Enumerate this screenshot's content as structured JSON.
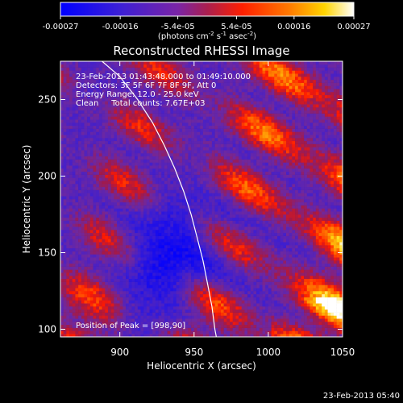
{
  "chart_data": {
    "type": "heatmap",
    "title": "Reconstructed RHESSI Image",
    "xlabel": "Heliocentric X (arcsec)",
    "ylabel": "Heliocentric Y (arcsec)",
    "xlim": [
      860,
      1050
    ],
    "ylim": [
      95,
      275
    ],
    "x_ticks": [
      900,
      950,
      1000,
      1050
    ],
    "y_ticks": [
      100,
      150,
      200,
      250
    ],
    "colorbar": {
      "ticks": [
        -0.00027,
        -0.00016,
        -5.4e-05,
        5.4e-05,
        0.00016,
        0.00027
      ],
      "tick_labels": [
        "-0.00027",
        "-0.00016",
        "-5.4e-05",
        "5.4e-05",
        "0.00016",
        "0.00027"
      ],
      "units_line1": "(photons cm",
      "units_exp1": "-2",
      "units_line2": " s",
      "units_exp2": "-1",
      "units_line3": " asec",
      "units_exp3": "-2",
      "units_line4": ")",
      "range": [
        -0.00027,
        0.00027
      ]
    },
    "annotations": {
      "time_range": "23-Feb-2013 01:43:48.000 to 01:49:10.000",
      "detectors": "Detectors: 3F 5F 6F 7F 8F 9F, Att 0",
      "energy": "Energy Range: 12.0 - 25.0 keV",
      "method": "Clean     Total counts: 7.67E+03",
      "peak": "Position of Peak = [998,90]"
    },
    "limb_curve_points": [
      [
        888,
        275
      ],
      [
        900,
        265
      ],
      [
        912,
        250
      ],
      [
        922,
        235
      ],
      [
        930,
        220
      ],
      [
        937,
        205
      ],
      [
        943,
        190
      ],
      [
        948,
        175
      ],
      [
        952,
        160
      ],
      [
        956,
        145
      ],
      [
        959,
        130
      ],
      [
        962,
        115
      ],
      [
        964,
        100
      ],
      [
        965,
        95
      ]
    ],
    "grid_note": "raster of ~2 arcsec pixels with diagonal banding",
    "peak_position": [
      998,
      90
    ]
  },
  "footer": {
    "timestamp": "23-Feb-2013 05:40"
  }
}
